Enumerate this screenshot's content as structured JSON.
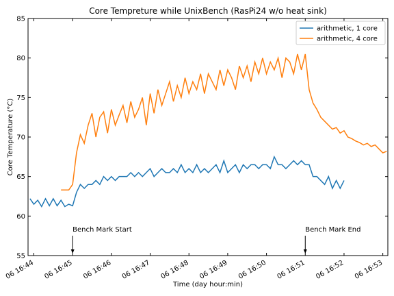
{
  "chart_data": {
    "type": "line",
    "title": "Core Tempreture while UnixBench (RasPi24 w/o heat sink)",
    "x_label": "Time (day hour:min)",
    "y_label": "Core Temperature (°C)",
    "x": [
      43.9,
      44.0,
      44.1,
      44.2,
      44.3,
      44.4,
      44.5,
      44.6,
      44.7,
      44.8,
      44.9,
      45.0,
      45.1,
      45.2,
      45.3,
      45.4,
      45.5,
      45.6,
      45.7,
      45.8,
      45.9,
      46.0,
      46.1,
      46.2,
      46.3,
      46.4,
      46.5,
      46.6,
      46.7,
      46.8,
      46.9,
      47.0,
      47.1,
      47.2,
      47.3,
      47.4,
      47.5,
      47.6,
      47.7,
      47.8,
      47.9,
      48.0,
      48.1,
      48.2,
      48.3,
      48.4,
      48.5,
      48.6,
      48.7,
      48.8,
      48.9,
      49.0,
      49.1,
      49.2,
      49.3,
      49.4,
      49.5,
      49.6,
      49.7,
      49.8,
      49.9,
      50.0,
      50.1,
      50.2,
      50.3,
      50.4,
      50.5,
      50.6,
      50.7,
      50.8,
      50.9,
      51.0,
      51.1,
      51.2,
      51.3,
      51.4,
      51.5,
      51.6,
      51.7,
      51.8,
      51.9,
      52.0,
      52.1,
      52.2,
      52.3,
      52.4,
      52.5,
      52.6,
      52.7,
      52.8,
      52.9,
      53.0,
      53.1
    ],
    "series": [
      {
        "name": "arithmetic, 1 core",
        "color": "#1f77b4",
        "values": [
          62.2,
          61.5,
          62.0,
          61.2,
          62.2,
          61.3,
          62.2,
          61.3,
          62.0,
          61.2,
          61.5,
          61.3,
          63.0,
          64.0,
          63.5,
          64.0,
          64.0,
          64.5,
          64.0,
          65.0,
          64.5,
          65.0,
          64.5,
          65.0,
          65.0,
          65.0,
          65.5,
          65.0,
          65.5,
          65.0,
          65.5,
          66.0,
          65.0,
          65.5,
          66.0,
          65.5,
          65.5,
          66.0,
          65.5,
          66.5,
          65.5,
          66.0,
          65.5,
          66.5,
          65.5,
          66.0,
          65.5,
          66.0,
          66.5,
          65.5,
          67.0,
          65.5,
          66.0,
          66.5,
          65.5,
          66.5,
          66.0,
          66.5,
          66.5,
          66.0,
          66.5,
          66.5,
          66.0,
          67.5,
          66.5,
          66.5,
          66.0,
          66.5,
          67.0,
          66.5,
          67.0,
          66.5,
          66.5,
          65.0,
          65.0,
          64.5,
          64.0,
          65.0,
          63.5,
          64.5,
          63.5,
          64.5,
          null,
          null,
          null,
          null,
          null,
          null,
          null,
          null,
          null,
          null,
          null
        ]
      },
      {
        "name": "arithmetic, 4 core",
        "color": "#ff7f0e",
        "values": [
          null,
          null,
          null,
          null,
          null,
          null,
          null,
          null,
          63.3,
          63.3,
          63.3,
          64.0,
          68.0,
          70.3,
          69.2,
          71.5,
          73.0,
          70.0,
          72.5,
          73.2,
          70.5,
          73.5,
          71.5,
          72.8,
          74.0,
          71.8,
          74.5,
          72.5,
          73.5,
          75.0,
          71.5,
          75.5,
          73.0,
          76.0,
          74.0,
          75.5,
          77.0,
          74.5,
          76.5,
          75.0,
          77.5,
          75.5,
          77.0,
          76.0,
          78.0,
          75.5,
          78.0,
          77.0,
          76.0,
          78.5,
          76.5,
          78.5,
          77.5,
          76.0,
          79.0,
          77.5,
          79.0,
          77.0,
          79.5,
          78.0,
          80.0,
          78.0,
          79.5,
          78.5,
          80.0,
          77.5,
          80.0,
          79.5,
          78.0,
          80.5,
          78.5,
          80.5,
          76.0,
          74.3,
          73.5,
          72.5,
          72.0,
          71.5,
          71.0,
          71.2,
          70.5,
          70.8,
          70.0,
          69.8,
          69.5,
          69.3,
          69.0,
          69.2,
          68.8,
          69.0,
          68.5,
          68.0,
          68.2
        ]
      }
    ],
    "xlim": [
      43.85,
      53.13
    ],
    "xticks": [
      {
        "value": 44,
        "label": "06 16:44"
      },
      {
        "value": 45,
        "label": "06 16:45"
      },
      {
        "value": 46,
        "label": "06 16:46"
      },
      {
        "value": 47,
        "label": "06 16:47"
      },
      {
        "value": 48,
        "label": "06 16:48"
      },
      {
        "value": 49,
        "label": "06 16:49"
      },
      {
        "value": 50,
        "label": "06 16:50"
      },
      {
        "value": 51,
        "label": "06 16:51"
      },
      {
        "value": 52,
        "label": "06 16:52"
      },
      {
        "value": 53,
        "label": "06 16:53"
      }
    ],
    "ylim": [
      55,
      85
    ],
    "yticks": [
      55,
      60,
      65,
      70,
      75,
      80,
      85
    ],
    "legend": "upper right",
    "annotations": [
      {
        "text": "Bench Mark Start",
        "x": 45
      },
      {
        "text": "Bench Mark End",
        "x": 51
      }
    ]
  }
}
